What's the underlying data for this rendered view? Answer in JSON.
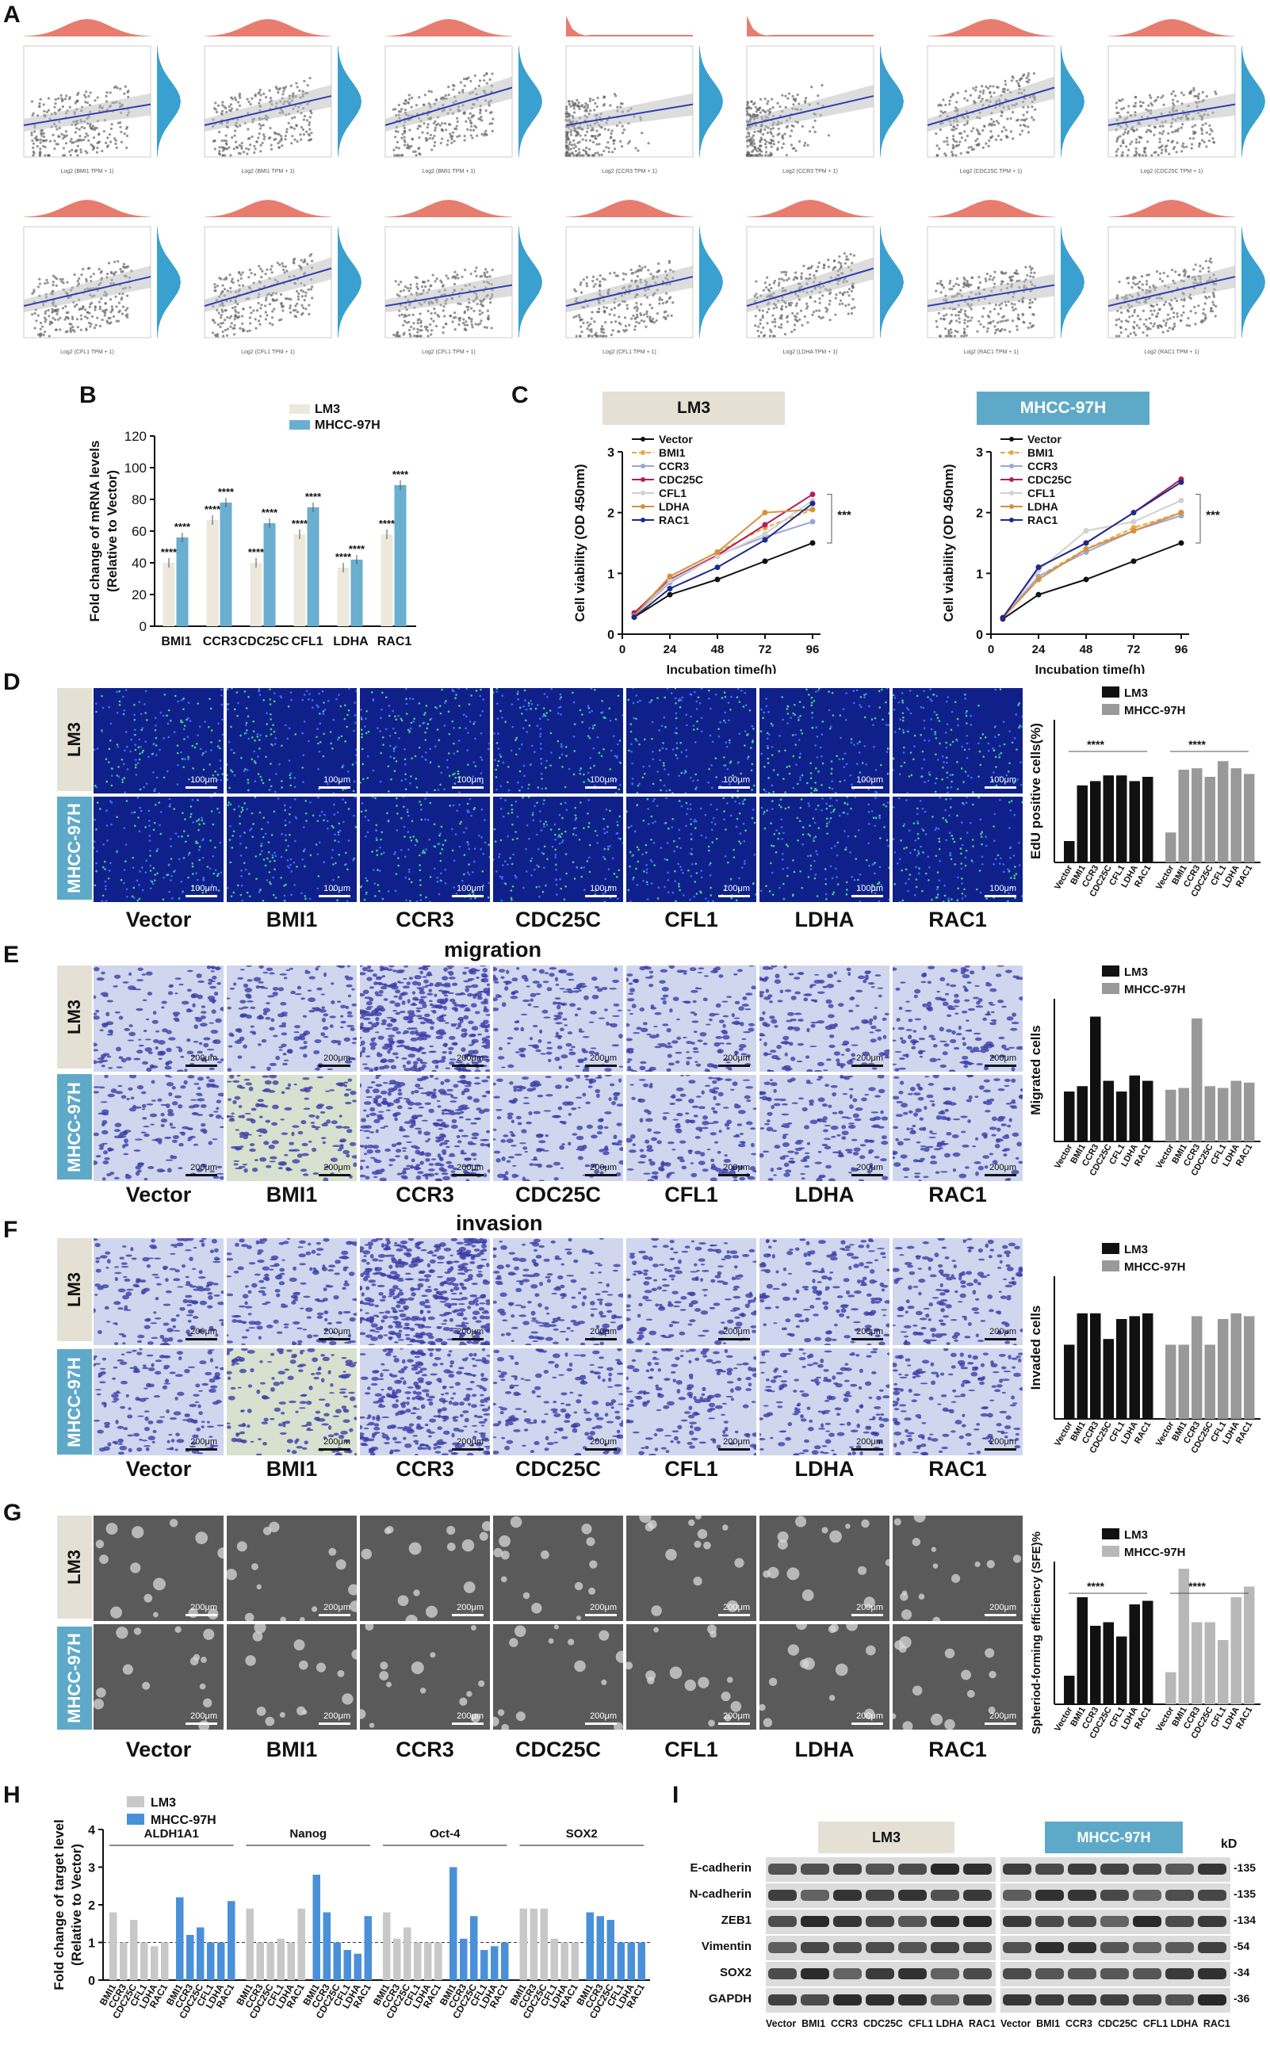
{
  "panel_labels": {
    "A": "A",
    "B": "B",
    "C": "C",
    "D": "D",
    "E": "E",
    "F": "F",
    "G": "G",
    "H": "H",
    "I": "I"
  },
  "colors": {
    "lm3_bar": "#ece8db",
    "mhcc_bar": "#6aaed0",
    "density_red": "#e46e5f",
    "density_blue": "#3aa0cf",
    "fit_line": "#3040b0",
    "lm3_header": "#e5e0d4",
    "mhcc_header": "#5ea9c8",
    "mhcc_bar_gray": "#999999",
    "mhcc_bar_light": "#b8b8b8",
    "mhcc_bar_blue": "#4a90d9",
    "lm3_bar_gray": "#c8c8c8"
  },
  "genes": [
    "Vector",
    "BMI1",
    "CCR3",
    "CDC25C",
    "CFL1",
    "LDHA",
    "RAC1"
  ],
  "row_labels": {
    "lm3": "LM3",
    "mhcc": "MHCC-97H"
  },
  "panel_a": {
    "row1_xlabels": [
      "Log2 (BMI1 TPM + 1)",
      "Log2 (BMI1 TPM + 1)",
      "Log2 (BMI1 TPM + 1)",
      "Log2 (CCR3 TPM + 1)",
      "Log2 (CCR3 TPM + 1)",
      "Log2 (CDC25C TPM + 1)",
      "Log2 (CDC25C TPM + 1)"
    ],
    "row2_xlabels": [
      "Log2 (CFL1 TPM + 1)",
      "Log2 (CFL1 TPM + 1)",
      "Log2 (CFL1 TPM + 1)",
      "Log2 (CFL1 TPM + 1)",
      "Log2 (LDHA TPM + 1)",
      "Log2 (RAC1 TPM + 1)",
      "Log2 (RAC1 TPM + 1)"
    ]
  },
  "chart_data": [
    {
      "panel": "B",
      "type": "bar",
      "ylabel": "Fold change of mRNA levels (Relative to Vector)",
      "ylim": [
        0,
        120
      ],
      "yticks": [
        0,
        20,
        40,
        60,
        80,
        100,
        120
      ],
      "categories": [
        "BMI1",
        "CCR3",
        "CDC25C",
        "CFL1",
        "LDHA",
        "RAC1"
      ],
      "series": [
        {
          "name": "LM3",
          "values": [
            40,
            67,
            40,
            58,
            37,
            58
          ]
        },
        {
          "name": "MHCC-97H",
          "values": [
            56,
            78,
            65,
            75,
            42,
            89
          ]
        }
      ],
      "annotations": [
        "****"
      ]
    },
    {
      "panel": "C-LM3",
      "type": "line",
      "title": "LM3",
      "xlabel": "Incubation time(h)",
      "ylabel": "Cell viability (OD 450nm)",
      "x": [
        6,
        24,
        48,
        72,
        96
      ],
      "xticks": [
        0,
        24,
        48,
        72,
        96
      ],
      "ylim": [
        0,
        3
      ],
      "yticks": [
        0,
        1,
        2,
        3
      ],
      "series": [
        {
          "name": "Vector",
          "values": [
            0.28,
            0.65,
            0.9,
            1.2,
            1.5
          ]
        },
        {
          "name": "BMI1",
          "values": [
            0.32,
            0.95,
            1.35,
            1.75,
            2.05
          ]
        },
        {
          "name": "CCR3",
          "values": [
            0.3,
            0.85,
            1.3,
            1.6,
            1.85
          ]
        },
        {
          "name": "CDC25C",
          "values": [
            0.35,
            0.9,
            1.3,
            1.8,
            2.3
          ]
        },
        {
          "name": "CFL1",
          "values": [
            0.3,
            0.88,
            1.28,
            1.65,
            2.2
          ]
        },
        {
          "name": "LDHA",
          "values": [
            0.3,
            0.95,
            1.35,
            2.0,
            2.05
          ]
        },
        {
          "name": "RAC1",
          "values": [
            0.28,
            0.75,
            1.1,
            1.55,
            2.15
          ]
        }
      ],
      "annotation": "***"
    },
    {
      "panel": "C-MHCC-97H",
      "type": "line",
      "title": "MHCC-97H",
      "xlabel": "Incubation time(h)",
      "ylabel": "Cell viability (OD 450nm)",
      "x": [
        6,
        24,
        48,
        72,
        96
      ],
      "xticks": [
        0,
        24,
        48,
        72,
        96
      ],
      "ylim": [
        0,
        3
      ],
      "yticks": [
        0,
        1,
        2,
        3
      ],
      "series": [
        {
          "name": "Vector",
          "values": [
            0.25,
            0.65,
            0.9,
            1.2,
            1.5
          ]
        },
        {
          "name": "BMI1",
          "values": [
            0.27,
            0.95,
            1.4,
            1.75,
            2.0
          ]
        },
        {
          "name": "CCR3",
          "values": [
            0.27,
            0.95,
            1.35,
            1.7,
            1.95
          ]
        },
        {
          "name": "CDC25C",
          "values": [
            0.27,
            1.1,
            1.5,
            2.0,
            2.55
          ]
        },
        {
          "name": "CFL1",
          "values": [
            0.27,
            1.05,
            1.7,
            1.85,
            2.2
          ]
        },
        {
          "name": "LDHA",
          "values": [
            0.27,
            0.9,
            1.4,
            1.7,
            2.0
          ]
        },
        {
          "name": "RAC1",
          "values": [
            0.27,
            1.1,
            1.5,
            2.0,
            2.5
          ]
        }
      ],
      "annotation": "***"
    },
    {
      "panel": "D",
      "type": "bar",
      "ylabel": "EdU positive cells(%)",
      "ylim": [
        0,
        100
      ],
      "categories": [
        "Vector",
        "BMI1",
        "CCR3",
        "CDC25C",
        "CFL1",
        "LDHA",
        "RAC1"
      ],
      "series": [
        {
          "name": "LM3",
          "values": [
            15,
            54,
            57,
            61,
            61,
            57,
            60
          ]
        },
        {
          "name": "MHCC-97H",
          "values": [
            21,
            65,
            66,
            60,
            71,
            66,
            62
          ]
        }
      ],
      "annotations": [
        "****",
        "****"
      ]
    },
    {
      "panel": "E",
      "type": "bar",
      "title": "migration",
      "ylabel": "Migrated cells",
      "ylim": [
        0,
        800
      ],
      "categories": [
        "Vector",
        "BMI1",
        "CCR3",
        "CDC25C",
        "CFL1",
        "LDHA",
        "RAC1"
      ],
      "series": [
        {
          "name": "LM3",
          "values": [
            280,
            310,
            700,
            340,
            280,
            370,
            340
          ]
        },
        {
          "name": "MHCC-97H",
          "values": [
            290,
            300,
            690,
            310,
            300,
            340,
            330
          ]
        }
      ]
    },
    {
      "panel": "F",
      "type": "bar",
      "title": "invasion",
      "ylabel": "Invaded cells",
      "ylim": [
        0,
        500
      ],
      "categories": [
        "Vector",
        "BMI1",
        "CCR3",
        "CDC25C",
        "CFL1",
        "LDHA",
        "RAC1"
      ],
      "series": [
        {
          "name": "LM3",
          "values": [
            260,
            370,
            370,
            280,
            350,
            360,
            370
          ]
        },
        {
          "name": "MHCC-97H",
          "values": [
            260,
            260,
            360,
            260,
            350,
            370,
            360
          ]
        }
      ]
    },
    {
      "panel": "G",
      "type": "bar",
      "ylabel": "Spheriod-forming efficiency (SFE)%",
      "ylim": [
        0,
        40
      ],
      "categories": [
        "Vector",
        "BMI1",
        "CCR3",
        "CDC25C",
        "CFL1",
        "LDHA",
        "RAC1"
      ],
      "series": [
        {
          "name": "LM3",
          "values": [
            8,
            30,
            22,
            23,
            19,
            28,
            29
          ]
        },
        {
          "name": "MHCC-97H",
          "values": [
            9,
            38,
            23,
            23,
            18,
            30,
            33
          ]
        }
      ],
      "annotations": [
        "****",
        "****"
      ]
    },
    {
      "panel": "H",
      "type": "bar",
      "ylabel": "Fold change of target level (Relative to Vector)",
      "ylim": [
        0,
        4
      ],
      "yticks": [
        0,
        1,
        2,
        3,
        4
      ],
      "groups": [
        "ALDH1A1",
        "Nanog",
        "Oct-4",
        "SOX2"
      ],
      "categories": [
        "BMI1",
        "CCR3",
        "CDC25C",
        "CFL1",
        "LDHA",
        "RAC1"
      ],
      "series": [
        {
          "name": "LM3",
          "values": [
            [
              1.8,
              1.0,
              1.6,
              1.0,
              0.9,
              1.0
            ],
            [
              1.9,
              1.0,
              1.0,
              1.1,
              1.0,
              1.9
            ],
            [
              1.8,
              1.1,
              1.4,
              1.0,
              1.0,
              1.0
            ],
            [
              1.9,
              1.9,
              1.9,
              1.1,
              1.0,
              1.0
            ]
          ]
        },
        {
          "name": "MHCC-97H",
          "values": [
            [
              2.2,
              1.2,
              1.4,
              1.0,
              1.0,
              2.1
            ],
            [
              2.8,
              1.8,
              1.0,
              0.8,
              0.7,
              1.7
            ],
            [
              3.0,
              1.1,
              1.7,
              0.8,
              0.9,
              1.0
            ],
            [
              1.8,
              1.7,
              1.6,
              1.0,
              1.0,
              1.0
            ]
          ]
        }
      ]
    }
  ],
  "panel_c": {
    "lm3_title": "LM3",
    "mhcc_title": "MHCC-97H"
  },
  "panel_titles": {
    "migration": "migration",
    "invasion": "invasion"
  },
  "scale_bars": {
    "edu": "100μm",
    "transwell": "200μm",
    "sphere": "200μm"
  },
  "panel_i": {
    "lm3": "LM3",
    "mhcc": "MHCC-97H",
    "kd": "kD",
    "proteins": [
      "E-cadherin",
      "N-cadherin",
      "ZEB1",
      "Vimentin",
      "SOX2",
      "GAPDH"
    ],
    "sizes": [
      "-135",
      "-135",
      "-134",
      "-54",
      "-34",
      "-36"
    ],
    "lanes": "Vector  BMI1  CCR3  CDC25C  CFL1 LDHA  RAC1"
  }
}
